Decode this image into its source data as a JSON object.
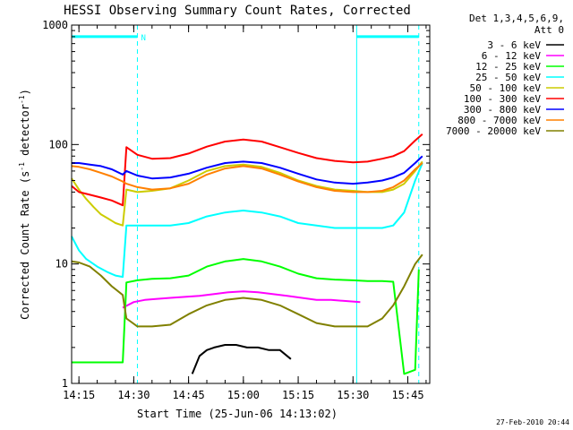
{
  "chart_data": {
    "type": "line",
    "title": "HESSI Observing Summary Count Rates, Corrected",
    "xlabel": "Start Time (25-Jun-06 14:13:02)",
    "ylabel": "Corrected Count Rate (s-1 detector-1)",
    "ylabel_parts": {
      "main": "Corrected Count Rate (s",
      "exp1": "-1",
      "mid": " detector",
      "exp2": "-1",
      "end": ")"
    },
    "y_scale": "log",
    "ylim": [
      1,
      1000
    ],
    "xlim": [
      "14:13",
      "15:51"
    ],
    "x_ticks": [
      "14:15",
      "14:30",
      "14:45",
      "15:00",
      "15:15",
      "15:30",
      "15:45"
    ],
    "y_ticks": [
      "1",
      "10",
      "100",
      "1000"
    ],
    "legend_header": [
      "Det 1,3,4,5,6,9,",
      "Att 0"
    ],
    "legend_position": "right",
    "footer_date": "27-Feb-2010 20:44",
    "annotation": {
      "label": "N",
      "bars": [
        [
          "14:13",
          "14:31"
        ],
        [
          "15:31",
          "15:48"
        ]
      ],
      "y": 800
    },
    "markers": {
      "solid": [
        "14:13",
        "15:31"
      ],
      "dashed": [
        "14:31",
        "15:48"
      ]
    },
    "series": [
      {
        "name": "3 - 6 keV",
        "color": "#000000",
        "points": [
          [
            "14:46",
            1.2
          ],
          [
            "14:48",
            1.7
          ],
          [
            "14:50",
            1.9
          ],
          [
            "14:52",
            2.0
          ],
          [
            "14:55",
            2.1
          ],
          [
            "14:58",
            2.1
          ],
          [
            "15:01",
            2.0
          ],
          [
            "15:04",
            2.0
          ],
          [
            "15:07",
            1.9
          ],
          [
            "15:10",
            1.9
          ],
          [
            "15:13",
            1.6
          ]
        ]
      },
      {
        "name": "6 - 12 keV",
        "color": "#ff00ff",
        "points": [
          [
            "14:27",
            4.3
          ],
          [
            "14:30",
            4.8
          ],
          [
            "14:33",
            5.0
          ],
          [
            "14:36",
            5.1
          ],
          [
            "14:40",
            5.2
          ],
          [
            "14:44",
            5.3
          ],
          [
            "14:48",
            5.4
          ],
          [
            "14:52",
            5.6
          ],
          [
            "14:56",
            5.8
          ],
          [
            "15:00",
            5.9
          ],
          [
            "15:04",
            5.8
          ],
          [
            "15:08",
            5.6
          ],
          [
            "15:12",
            5.4
          ],
          [
            "15:16",
            5.2
          ],
          [
            "15:20",
            5.0
          ],
          [
            "15:24",
            5.0
          ],
          [
            "15:28",
            4.9
          ],
          [
            "15:32",
            4.8
          ]
        ]
      },
      {
        "name": "12 - 25 keV",
        "color": "#00ff00",
        "points": [
          [
            "14:13",
            1.5
          ],
          [
            "14:18",
            1.5
          ],
          [
            "14:23",
            1.5
          ],
          [
            "14:27",
            1.5
          ],
          [
            "14:28",
            7.0
          ],
          [
            "14:31",
            7.3
          ],
          [
            "14:35",
            7.5
          ],
          [
            "14:40",
            7.6
          ],
          [
            "14:45",
            8.0
          ],
          [
            "14:50",
            9.5
          ],
          [
            "14:55",
            10.5
          ],
          [
            "15:00",
            11.0
          ],
          [
            "15:05",
            10.5
          ],
          [
            "15:10",
            9.5
          ],
          [
            "15:15",
            8.3
          ],
          [
            "15:20",
            7.6
          ],
          [
            "15:25",
            7.4
          ],
          [
            "15:30",
            7.3
          ],
          [
            "15:34",
            7.2
          ],
          [
            "15:38",
            7.2
          ],
          [
            "15:41",
            7.1
          ],
          [
            "15:44",
            1.2
          ],
          [
            "15:47",
            1.3
          ],
          [
            "15:48",
            9.0
          ]
        ]
      },
      {
        "name": "25 - 50 keV",
        "color": "#00ffff",
        "points": [
          [
            "14:13",
            17
          ],
          [
            "14:15",
            13
          ],
          [
            "14:17",
            11
          ],
          [
            "14:20",
            9.5
          ],
          [
            "14:23",
            8.5
          ],
          [
            "14:25",
            8.0
          ],
          [
            "14:27",
            7.8
          ],
          [
            "14:28",
            21
          ],
          [
            "14:31",
            21
          ],
          [
            "14:35",
            21
          ],
          [
            "14:40",
            21
          ],
          [
            "14:45",
            22
          ],
          [
            "14:50",
            25
          ],
          [
            "14:55",
            27
          ],
          [
            "15:00",
            28
          ],
          [
            "15:05",
            27
          ],
          [
            "15:10",
            25
          ],
          [
            "15:15",
            22
          ],
          [
            "15:20",
            21
          ],
          [
            "15:25",
            20
          ],
          [
            "15:30",
            20
          ],
          [
            "15:34",
            20
          ],
          [
            "15:38",
            20
          ],
          [
            "15:41",
            21
          ],
          [
            "15:44",
            27
          ],
          [
            "15:47",
            50
          ],
          [
            "15:49",
            70
          ]
        ]
      },
      {
        "name": "50 - 100 keV",
        "color": "#cccc00",
        "points": [
          [
            "14:13",
            52
          ],
          [
            "14:15",
            42
          ],
          [
            "14:17",
            35
          ],
          [
            "14:19",
            30
          ],
          [
            "14:21",
            26
          ],
          [
            "14:23",
            24
          ],
          [
            "14:25",
            22
          ],
          [
            "14:27",
            21
          ],
          [
            "14:28",
            42
          ],
          [
            "14:31",
            40
          ],
          [
            "14:35",
            41
          ],
          [
            "14:40",
            43
          ],
          [
            "14:45",
            50
          ],
          [
            "14:50",
            60
          ],
          [
            "14:55",
            66
          ],
          [
            "15:00",
            68
          ],
          [
            "15:05",
            65
          ],
          [
            "15:10",
            58
          ],
          [
            "15:15",
            50
          ],
          [
            "15:20",
            45
          ],
          [
            "15:25",
            42
          ],
          [
            "15:30",
            41
          ],
          [
            "15:34",
            40
          ],
          [
            "15:38",
            40
          ],
          [
            "15:41",
            42
          ],
          [
            "15:44",
            47
          ],
          [
            "15:47",
            60
          ],
          [
            "15:49",
            72
          ]
        ]
      },
      {
        "name": "100 - 300 keV",
        "color": "#ff0000",
        "points": [
          [
            "14:13",
            45
          ],
          [
            "14:15",
            40
          ],
          [
            "14:18",
            38
          ],
          [
            "14:21",
            36
          ],
          [
            "14:24",
            34
          ],
          [
            "14:27",
            31
          ],
          [
            "14:28",
            95
          ],
          [
            "14:31",
            82
          ],
          [
            "14:35",
            76
          ],
          [
            "14:40",
            77
          ],
          [
            "14:45",
            84
          ],
          [
            "14:50",
            96
          ],
          [
            "14:55",
            106
          ],
          [
            "15:00",
            110
          ],
          [
            "15:05",
            106
          ],
          [
            "15:10",
            95
          ],
          [
            "15:15",
            85
          ],
          [
            "15:20",
            77
          ],
          [
            "15:25",
            73
          ],
          [
            "15:30",
            71
          ],
          [
            "15:34",
            72
          ],
          [
            "15:38",
            76
          ],
          [
            "15:41",
            80
          ],
          [
            "15:44",
            88
          ],
          [
            "15:47",
            108
          ],
          [
            "15:49",
            122
          ]
        ]
      },
      {
        "name": "300 - 800 keV",
        "color": "#0000ff",
        "points": [
          [
            "14:13",
            70
          ],
          [
            "14:15",
            70
          ],
          [
            "14:18",
            68
          ],
          [
            "14:21",
            66
          ],
          [
            "14:24",
            62
          ],
          [
            "14:27",
            56
          ],
          [
            "14:28",
            60
          ],
          [
            "14:31",
            55
          ],
          [
            "14:35",
            52
          ],
          [
            "14:40",
            53
          ],
          [
            "14:45",
            57
          ],
          [
            "14:50",
            64
          ],
          [
            "14:55",
            70
          ],
          [
            "15:00",
            72
          ],
          [
            "15:05",
            70
          ],
          [
            "15:10",
            64
          ],
          [
            "15:15",
            57
          ],
          [
            "15:20",
            51
          ],
          [
            "15:25",
            48
          ],
          [
            "15:30",
            47
          ],
          [
            "15:34",
            48
          ],
          [
            "15:38",
            50
          ],
          [
            "15:41",
            53
          ],
          [
            "15:44",
            58
          ],
          [
            "15:47",
            70
          ],
          [
            "15:49",
            80
          ]
        ]
      },
      {
        "name": "800 - 7000 keV",
        "color": "#ff8000",
        "points": [
          [
            "14:13",
            66
          ],
          [
            "14:15",
            65
          ],
          [
            "14:18",
            62
          ],
          [
            "14:21",
            58
          ],
          [
            "14:24",
            54
          ],
          [
            "14:27",
            49
          ],
          [
            "14:28",
            47
          ],
          [
            "14:31",
            44
          ],
          [
            "14:35",
            42
          ],
          [
            "14:40",
            43
          ],
          [
            "14:45",
            47
          ],
          [
            "14:50",
            56
          ],
          [
            "14:55",
            63
          ],
          [
            "15:00",
            66
          ],
          [
            "15:05",
            63
          ],
          [
            "15:10",
            56
          ],
          [
            "15:15",
            49
          ],
          [
            "15:20",
            44
          ],
          [
            "15:25",
            41
          ],
          [
            "15:30",
            40
          ],
          [
            "15:34",
            40
          ],
          [
            "15:38",
            41
          ],
          [
            "15:41",
            44
          ],
          [
            "15:44",
            50
          ],
          [
            "15:47",
            62
          ],
          [
            "15:49",
            70
          ]
        ]
      },
      {
        "name": "7000 - 20000 keV",
        "color": "#808000",
        "points": [
          [
            "14:13",
            10.5
          ],
          [
            "14:15",
            10.3
          ],
          [
            "14:18",
            9.5
          ],
          [
            "14:21",
            8.0
          ],
          [
            "14:24",
            6.5
          ],
          [
            "14:27",
            5.5
          ],
          [
            "14:28",
            3.5
          ],
          [
            "14:31",
            3.0
          ],
          [
            "14:35",
            3.0
          ],
          [
            "14:40",
            3.1
          ],
          [
            "14:45",
            3.8
          ],
          [
            "14:50",
            4.5
          ],
          [
            "14:55",
            5.0
          ],
          [
            "15:00",
            5.2
          ],
          [
            "15:05",
            5.0
          ],
          [
            "15:10",
            4.5
          ],
          [
            "15:15",
            3.8
          ],
          [
            "15:20",
            3.2
          ],
          [
            "15:25",
            3.0
          ],
          [
            "15:30",
            3.0
          ],
          [
            "15:34",
            3.0
          ],
          [
            "15:38",
            3.5
          ],
          [
            "15:41",
            4.5
          ],
          [
            "15:44",
            6.5
          ],
          [
            "15:47",
            10
          ],
          [
            "15:49",
            12
          ]
        ]
      }
    ]
  }
}
